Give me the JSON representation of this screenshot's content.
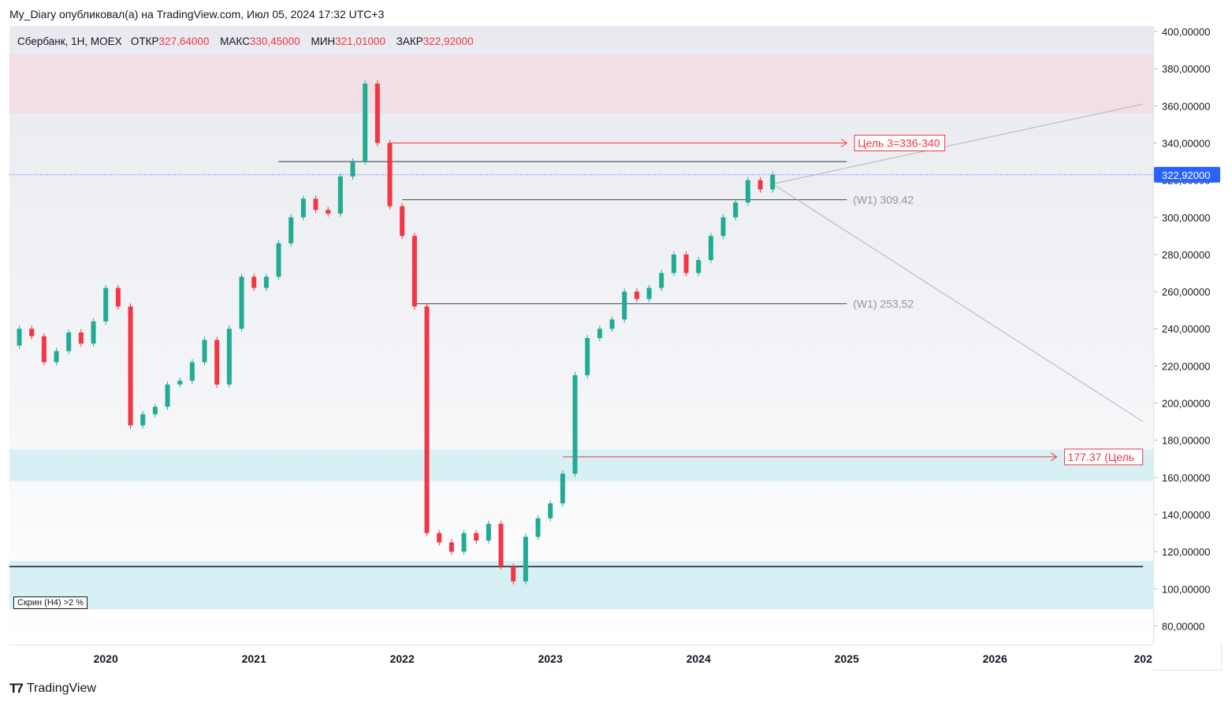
{
  "caption": "My_Diary опубликовал(а) на TradingView.com, Июл 05, 2024 17:32 UTC+3",
  "legend": {
    "symbol": "Сбербанк, 1Н, MOEX",
    "open_label": "ОТКР",
    "open": "327,64000",
    "high_label": "МАКС",
    "high": "330,45000",
    "low_label": "МИН",
    "low": "321,01000",
    "close_label": "ЗАКР",
    "close": "322,92000"
  },
  "screen_label": "Скрин (Н4) >2 %",
  "brand": "TradingView",
  "colors": {
    "up": "#22ab94",
    "down": "#f23645",
    "resistance_zone": "#f3dde3",
    "support_zone": "#d2eef3",
    "target_line": "#f23645",
    "price_badge": "#2962ff"
  },
  "chart_data": {
    "type": "candlestick",
    "ylim": [
      70,
      403
    ],
    "y_ticks": [
      "400,00000",
      "380,00000",
      "360,00000",
      "340,00000",
      "320,00000",
      "300,00000",
      "280,00000",
      "260,00000",
      "240,00000",
      "220,00000",
      "200,00000",
      "180,00000",
      "160,00000",
      "140,00000",
      "120,00000",
      "100,00000",
      "80,00000"
    ],
    "x_ticks": [
      "2020",
      "2021",
      "2022",
      "2023",
      "2024",
      "2025",
      "2026",
      "202"
    ],
    "last_price": 322.92,
    "last_price_label": "322,92000",
    "series": [
      {
        "name": "Сбербанк",
        "points": [
          [
            "2019-05",
            231
          ],
          [
            "2019-06",
            240
          ],
          [
            "2019-07",
            236
          ],
          [
            "2019-08",
            222
          ],
          [
            "2019-09",
            228
          ],
          [
            "2019-10",
            238
          ],
          [
            "2019-11",
            232
          ],
          [
            "2019-12",
            244
          ],
          [
            "2020-01",
            262
          ],
          [
            "2020-02",
            252
          ],
          [
            "2020-03",
            188
          ],
          [
            "2020-04",
            194
          ],
          [
            "2020-05",
            198
          ],
          [
            "2020-06",
            210
          ],
          [
            "2020-07",
            212
          ],
          [
            "2020-08",
            222
          ],
          [
            "2020-09",
            234
          ],
          [
            "2020-10",
            210
          ],
          [
            "2020-11",
            240
          ],
          [
            "2020-12",
            268
          ],
          [
            "2021-01",
            262
          ],
          [
            "2021-02",
            268
          ],
          [
            "2021-03",
            286
          ],
          [
            "2021-04",
            300
          ],
          [
            "2021-05",
            310
          ],
          [
            "2021-06",
            304
          ],
          [
            "2021-07",
            302
          ],
          [
            "2021-08",
            322
          ],
          [
            "2021-09",
            330
          ],
          [
            "2021-10",
            372
          ],
          [
            "2021-11",
            340
          ],
          [
            "2021-12",
            306
          ],
          [
            "2022-01",
            290
          ],
          [
            "2022-02",
            252
          ],
          [
            "2022-03",
            130
          ],
          [
            "2022-04",
            125
          ],
          [
            "2022-05",
            120
          ],
          [
            "2022-06",
            130
          ],
          [
            "2022-07",
            126
          ],
          [
            "2022-08",
            135
          ],
          [
            "2022-09",
            112
          ],
          [
            "2022-10",
            104
          ],
          [
            "2022-11",
            128
          ],
          [
            "2022-12",
            138
          ],
          [
            "2023-01",
            146
          ],
          [
            "2023-02",
            162
          ],
          [
            "2023-03",
            215
          ],
          [
            "2023-04",
            235
          ],
          [
            "2023-05",
            240
          ],
          [
            "2023-06",
            245
          ],
          [
            "2023-07",
            260
          ],
          [
            "2023-08",
            256
          ],
          [
            "2023-09",
            262
          ],
          [
            "2023-10",
            270
          ],
          [
            "2023-11",
            280
          ],
          [
            "2023-12",
            270
          ],
          [
            "2024-01",
            277
          ],
          [
            "2024-02",
            290
          ],
          [
            "2024-03",
            300
          ],
          [
            "2024-04",
            308
          ],
          [
            "2024-05",
            320
          ],
          [
            "2024-06",
            315
          ],
          [
            "2024-07",
            322.92
          ]
        ]
      }
    ],
    "zones": [
      {
        "kind": "resistance",
        "from": 356,
        "to": 388
      },
      {
        "kind": "support",
        "from": 158,
        "to": 175
      },
      {
        "kind": "support",
        "from": 89,
        "to": 115
      }
    ],
    "levels": [
      {
        "value": 330,
        "from": "2021-03",
        "to": "2025-01",
        "label": ""
      },
      {
        "value": 309.42,
        "from": "2022-01",
        "to": "2025-01",
        "label": "(W1) 309.42"
      },
      {
        "value": 253.52,
        "from": "2022-02",
        "to": "2025-01",
        "label": "(W1) 253,52"
      },
      {
        "value": 112,
        "from": "2019-05",
        "to": "2027-01",
        "label": ""
      }
    ],
    "targets": [
      {
        "value": 340,
        "from": "2021-12",
        "to": "2025-01",
        "label": "Цель 3=336-340"
      },
      {
        "value": 171,
        "from": "2023-02",
        "to": "2026-06",
        "label": "177.37 (Цель"
      }
    ],
    "trend_lines": [
      {
        "from": [
          "2024-07",
          318
        ],
        "to": [
          "2027-01",
          361
        ]
      },
      {
        "from": [
          "2024-07",
          318
        ],
        "to": [
          "2027-01",
          190
        ]
      }
    ]
  }
}
